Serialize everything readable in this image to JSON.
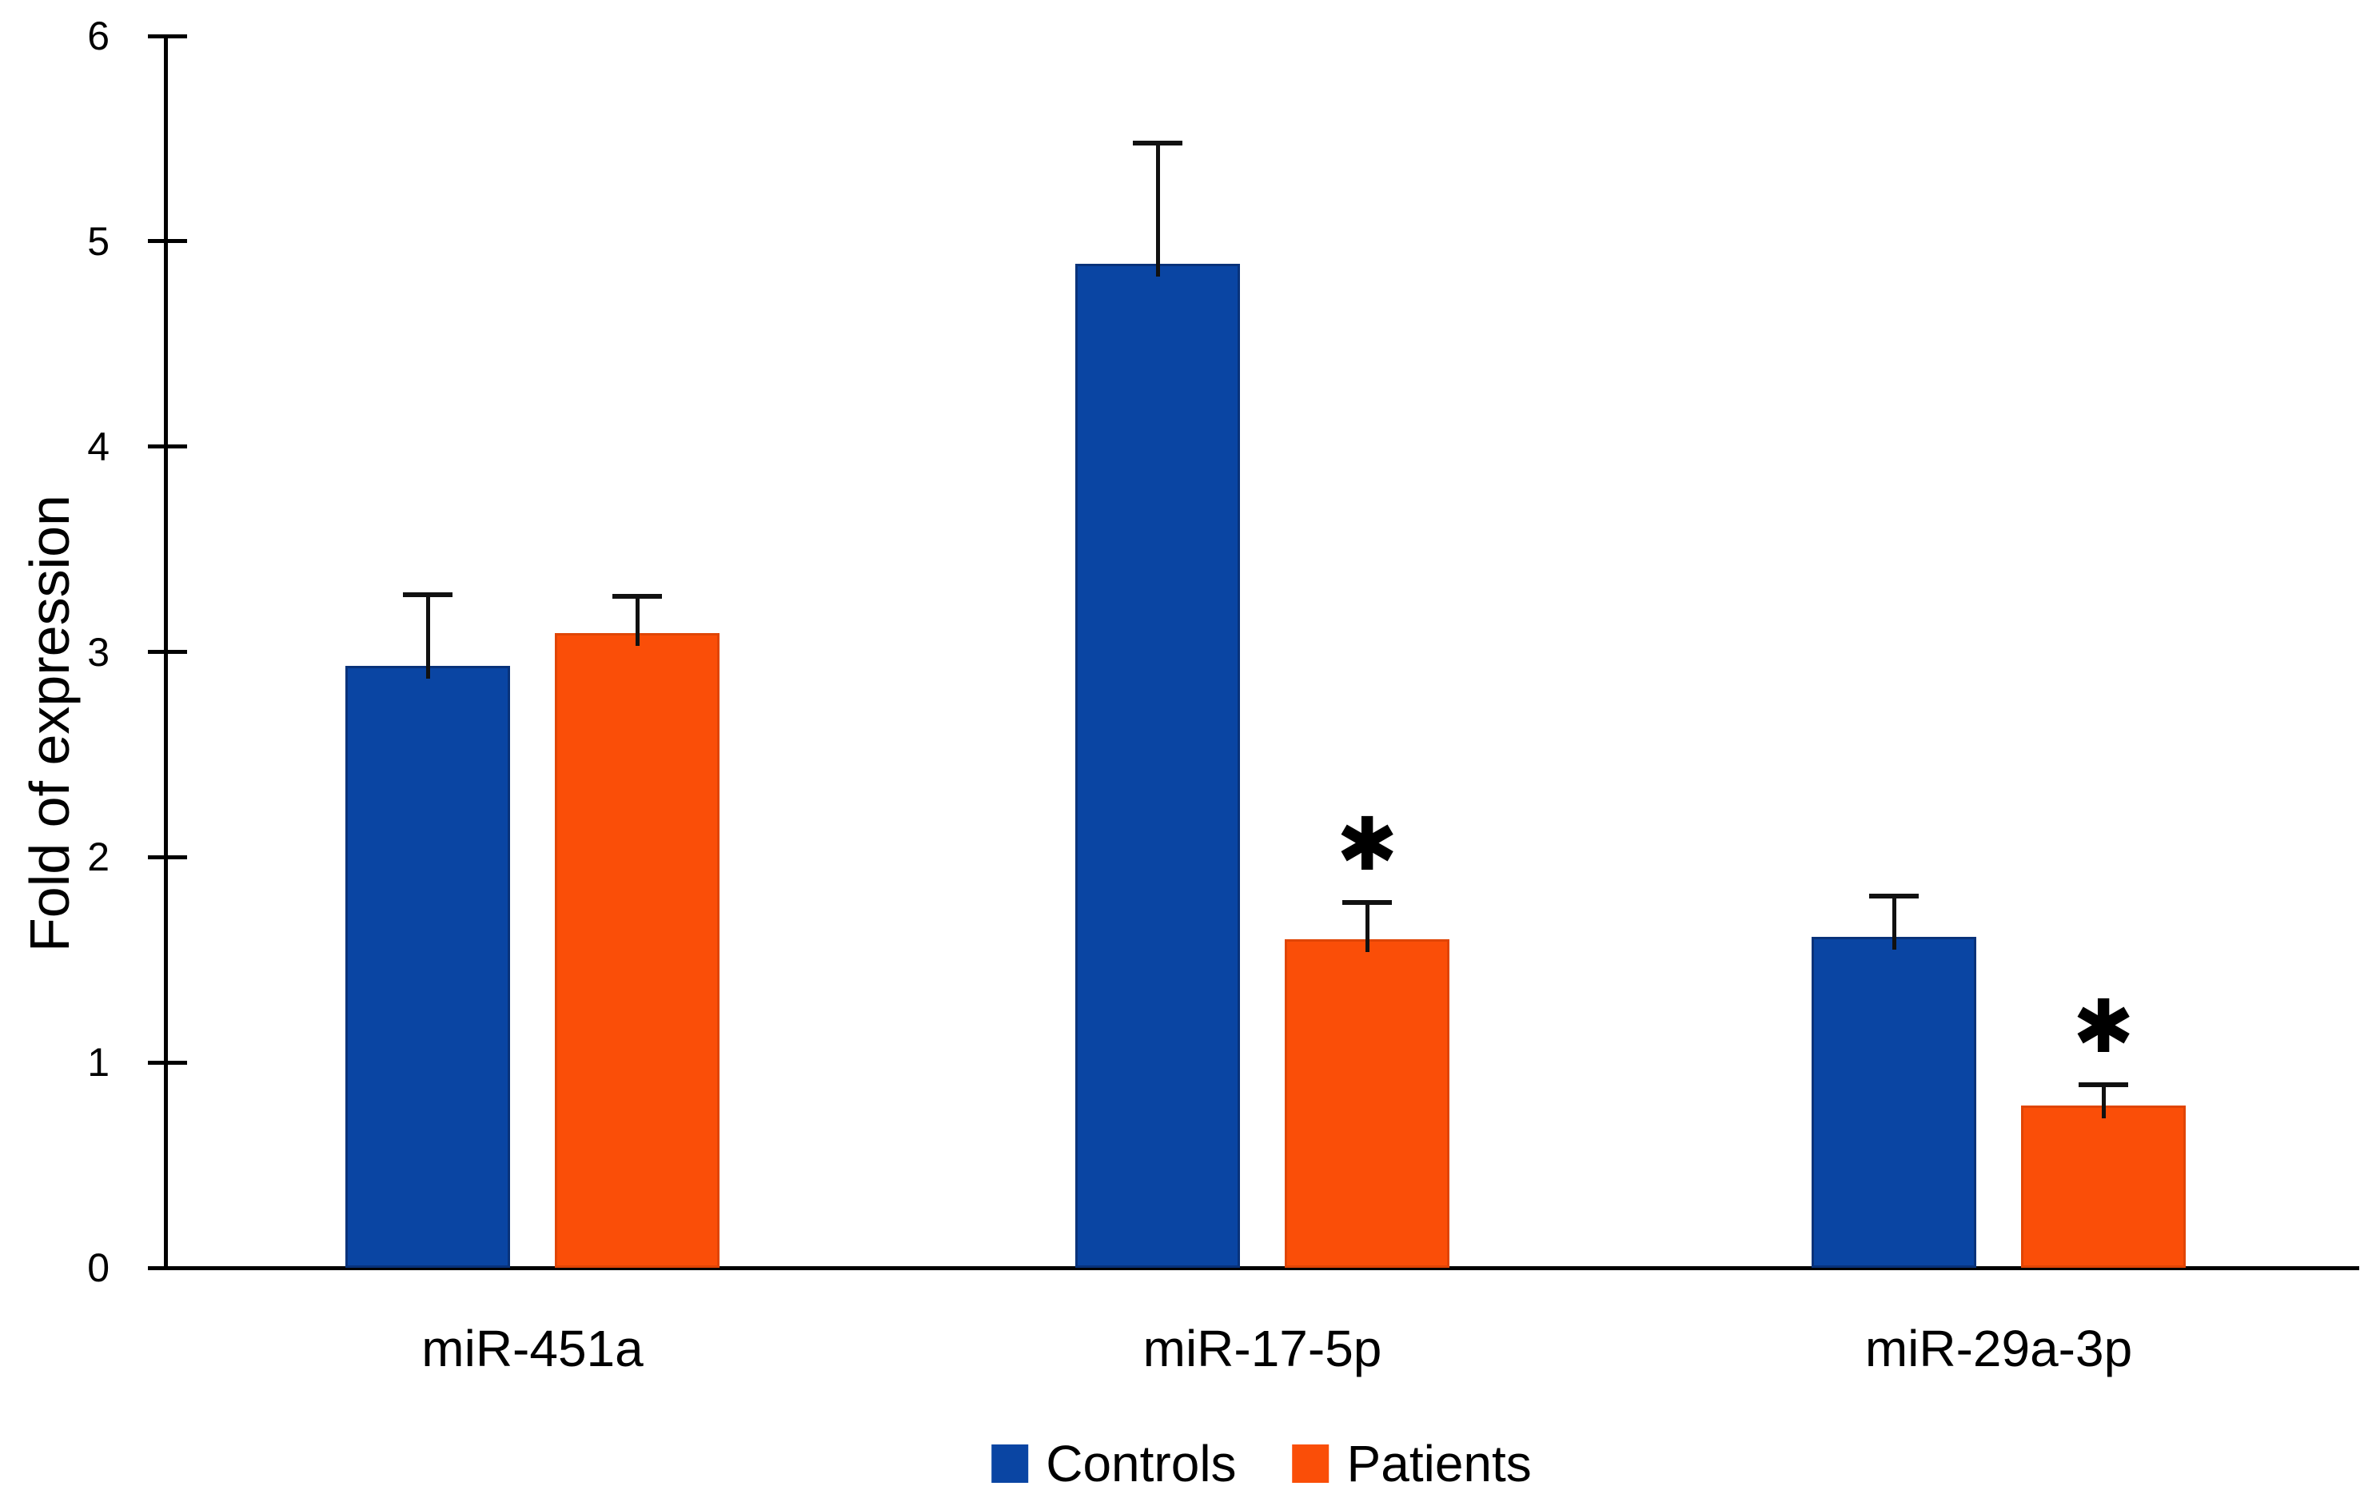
{
  "figure": {
    "background": "#ffffff",
    "axis_color": "#000000"
  },
  "chart_data": {
    "type": "bar",
    "title": "",
    "xlabel": "",
    "ylabel": "Fold of expression",
    "categories": [
      "miR-451a",
      "miR-17-5p",
      "miR-29a-3p"
    ],
    "series": [
      {
        "name": "Controls",
        "color": "#0a45a3",
        "values": [
          2.93,
          4.89,
          1.61
        ],
        "errors_plus": [
          0.35,
          0.59,
          0.2
        ],
        "significant": [
          false,
          false,
          false
        ]
      },
      {
        "name": "Patients",
        "color": "#fa4e08",
        "values": [
          3.09,
          1.6,
          0.79
        ],
        "errors_plus": [
          0.18,
          0.18,
          0.1
        ],
        "significant": [
          false,
          true,
          true
        ]
      }
    ],
    "significance_marker": "✱",
    "ylim": [
      0,
      6
    ],
    "yticks": [
      0,
      1,
      2,
      3,
      4,
      5,
      6
    ],
    "grid": false,
    "error_bars": "upper",
    "legend_position": "bottom-center",
    "legend": [
      "Controls",
      "Patients"
    ]
  }
}
